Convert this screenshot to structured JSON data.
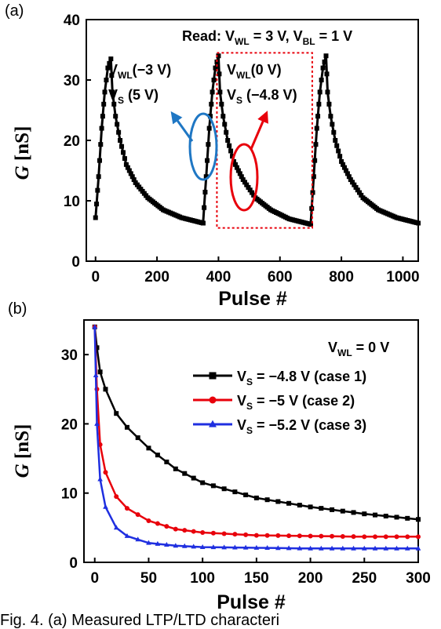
{
  "chart_data": [
    {
      "panel_label": "(a)",
      "type": "scatter",
      "xlabel": "Pulse #",
      "ylabel": "G",
      "ylabel_unit": "[nS]",
      "xlim": [
        -30,
        1050
      ],
      "ylim": [
        0,
        40
      ],
      "xticks": [
        0,
        200,
        400,
        600,
        800,
        1000
      ],
      "yticks": [
        0,
        10,
        20,
        30,
        40
      ],
      "grid": false,
      "series": [
        {
          "marker": "square",
          "color": "#000000",
          "points": [
            [
              0,
              7.2
            ],
            [
              10,
              14
            ],
            [
              20,
              22
            ],
            [
              30,
              28
            ],
            [
              40,
              32
            ],
            [
              50,
              33.5
            ],
            [
              55,
              28
            ],
            [
              65,
              24
            ],
            [
              80,
              20
            ],
            [
              100,
              16
            ],
            [
              130,
              13
            ],
            [
              170,
              10.5
            ],
            [
              220,
              8.5
            ],
            [
              280,
              7.2
            ],
            [
              350,
              6.3
            ],
            [
              350,
              6.3
            ],
            [
              360,
              14
            ],
            [
              370,
              22
            ],
            [
              380,
              28
            ],
            [
              390,
              32
            ],
            [
              400,
              34
            ],
            [
              405,
              28
            ],
            [
              415,
              24
            ],
            [
              430,
              20
            ],
            [
              450,
              16.5
            ],
            [
              480,
              13.5
            ],
            [
              520,
              10.5
            ],
            [
              570,
              8.5
            ],
            [
              630,
              7
            ],
            [
              700,
              6.1
            ],
            [
              700,
              6.1
            ],
            [
              710,
              14
            ],
            [
              720,
              22
            ],
            [
              730,
              28
            ],
            [
              740,
              32
            ],
            [
              750,
              34
            ],
            [
              755,
              28
            ],
            [
              765,
              24
            ],
            [
              780,
              20
            ],
            [
              800,
              16.5
            ],
            [
              830,
              13.5
            ],
            [
              870,
              10.5
            ],
            [
              920,
              8.5
            ],
            [
              980,
              7.2
            ],
            [
              1050,
              6.3
            ]
          ]
        }
      ],
      "annotations": {
        "read_prefix": "Read: V",
        "read_sub1": "WL",
        "read_mid": " = 3 V, V",
        "read_sub2": "BL",
        "read_suffix": " = 1 V",
        "left_line1_prefix": "V",
        "left_line1_sub": "WL",
        "left_line1_suffix": "(−3 V)",
        "left_line2_prefix": "V",
        "left_line2_sub": "S",
        "left_line2_suffix": " (5 V)",
        "right_line1_prefix": "V",
        "right_line1_sub": "WL",
        "right_line1_suffix": "(0 V)",
        "right_line2_prefix": "V",
        "right_line2_sub": "S",
        "right_line2_suffix": " (−4.8 V)",
        "blue_color": "#1f77c4",
        "red_color": "#e8000b",
        "box_range_x": [
          400,
          700
        ],
        "box_range_y": [
          5.5,
          34.5
        ]
      }
    },
    {
      "panel_label": "(b)",
      "type": "line",
      "xlabel": "Pulse #",
      "ylabel": "G",
      "ylabel_unit": "[nS]",
      "xlim": [
        -10,
        300
      ],
      "ylim": [
        0,
        35
      ],
      "xticks": [
        0,
        50,
        100,
        150,
        200,
        250,
        300
      ],
      "yticks": [
        0,
        10,
        20,
        30
      ],
      "grid": false,
      "legend_placement": "top-right",
      "legend_title_prefix": "V",
      "legend_title_sub": "WL",
      "legend_title_suffix": " = 0 V",
      "series": [
        {
          "name_prefix": "V",
          "name_sub": "S",
          "name_suffix": " = −4.8 V (case 1)",
          "color": "#000000",
          "marker": "square",
          "points": [
            [
              0,
              34
            ],
            [
              2,
              31
            ],
            [
              5,
              27.5
            ],
            [
              10,
              25
            ],
            [
              20,
              21.5
            ],
            [
              30,
              19.5
            ],
            [
              50,
              16.5
            ],
            [
              75,
              13.5
            ],
            [
              100,
              11.5
            ],
            [
              150,
              9.3
            ],
            [
              200,
              8
            ],
            [
              250,
              7
            ],
            [
              300,
              6.2
            ]
          ]
        },
        {
          "name_prefix": "V",
          "name_sub": "S",
          "name_suffix": " = −5 V (case 2)",
          "color": "#e8000b",
          "marker": "circle",
          "points": [
            [
              0,
              34
            ],
            [
              2,
              25
            ],
            [
              5,
              17
            ],
            [
              10,
              13
            ],
            [
              20,
              9.5
            ],
            [
              30,
              7.8
            ],
            [
              50,
              6
            ],
            [
              75,
              4.8
            ],
            [
              100,
              4.3
            ],
            [
              150,
              3.9
            ],
            [
              200,
              3.8
            ],
            [
              250,
              3.7
            ],
            [
              300,
              3.7
            ]
          ]
        },
        {
          "name_prefix": "V",
          "name_sub": "S",
          "name_suffix": " = −5.2 V (case 3)",
          "color": "#1f2fe0",
          "marker": "triangle",
          "points": [
            [
              0,
              34
            ],
            [
              2,
              20
            ],
            [
              5,
              12
            ],
            [
              10,
              8
            ],
            [
              20,
              5
            ],
            [
              30,
              3.8
            ],
            [
              50,
              2.8
            ],
            [
              75,
              2.4
            ],
            [
              100,
              2.2
            ],
            [
              150,
              2.1
            ],
            [
              200,
              2
            ],
            [
              250,
              2
            ],
            [
              300,
              2
            ]
          ]
        }
      ]
    }
  ],
  "caption_fragment": "Fig. 4. (a) Measured LTP/LTD characteri"
}
